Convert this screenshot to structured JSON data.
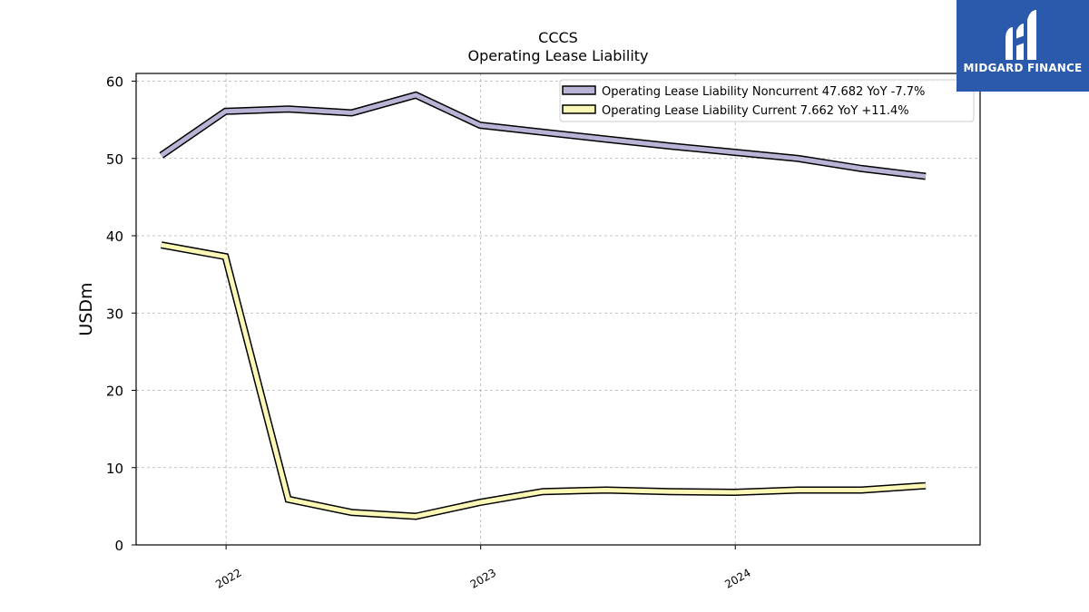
{
  "chart_data": {
    "type": "line",
    "title": "CCCS",
    "subtitle": "Operating Lease Liability",
    "ylabel": "USDm",
    "xlabel": "",
    "ylim": [
      0,
      61
    ],
    "yticks": [
      0,
      10,
      20,
      30,
      40,
      50,
      60
    ],
    "x": [
      "2021-09-30",
      "2021-12-31",
      "2022-03-31",
      "2022-06-30",
      "2022-09-30",
      "2022-12-31",
      "2023-03-31",
      "2023-06-30",
      "2023-09-30",
      "2023-12-31",
      "2024-03-31",
      "2024-06-30",
      "2024-09-30"
    ],
    "xticks": [
      "2022",
      "2023",
      "2024"
    ],
    "grid": true,
    "legend_position": "top-right",
    "series": [
      {
        "name": "Operating Lease Liability Noncurrent  47.682 YoY -7.7%",
        "color": "#b9b4d6",
        "values": [
          50.4,
          56.1,
          56.4,
          55.9,
          58.2,
          54.3,
          53.4,
          52.5,
          51.6,
          50.8,
          50.0,
          48.7,
          47.682
        ]
      },
      {
        "name": "Operating Lease Liability Current  7.662 YoY +11.4%",
        "color": "#fbf7b6",
        "values": [
          38.8,
          37.3,
          5.9,
          4.2,
          3.7,
          5.5,
          6.9,
          7.1,
          6.9,
          6.8,
          7.1,
          7.1,
          7.662
        ]
      }
    ]
  },
  "logo": {
    "text": "MIDGARD FINANCE"
  }
}
